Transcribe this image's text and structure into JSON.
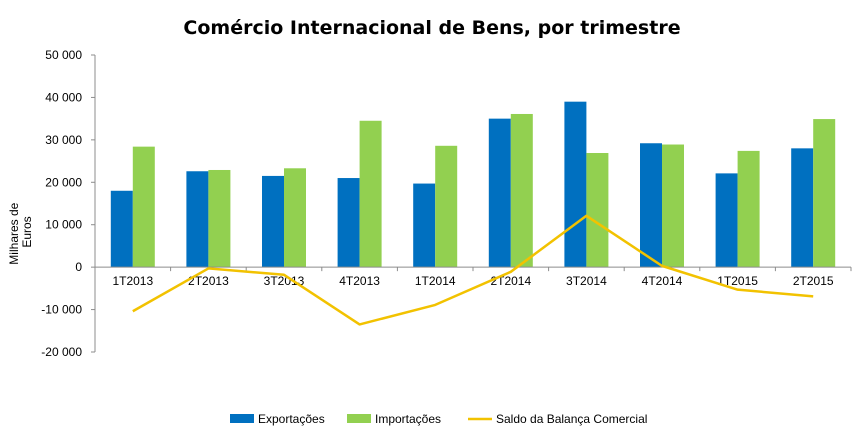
{
  "chart_data": {
    "type": "bar",
    "title": "Comércio Internacional de Bens, por trimestre",
    "ylabel_lines": [
      "Milhares de",
      "Euros"
    ],
    "xlabel": "",
    "categories": [
      "1T2013",
      "2T2013",
      "3T2013",
      "4T2013",
      "1T2014",
      "2T2014",
      "3T2014",
      "4T2014",
      "1T2015",
      "2T2015"
    ],
    "ylim": [
      -20000,
      50000
    ],
    "yticks": [
      -20000,
      -10000,
      0,
      10000,
      20000,
      30000,
      40000,
      50000
    ],
    "ytick_labels": [
      "-20 000",
      "-10 000",
      "0",
      "10 000",
      "20 000",
      "30 000",
      "40 000",
      "50 000"
    ],
    "grid": false,
    "legend_position": "bottom",
    "series": [
      {
        "name": "Exportações",
        "kind": "bar",
        "color": "#0070C0",
        "values": [
          18000,
          22600,
          21500,
          21000,
          19700,
          35000,
          39000,
          29200,
          22100,
          28000
        ]
      },
      {
        "name": "Importações",
        "kind": "bar",
        "color": "#92D050",
        "values": [
          28400,
          22900,
          23300,
          34500,
          28600,
          36100,
          26900,
          28900,
          27400,
          34900
        ]
      },
      {
        "name": "Saldo da Balança Comercial",
        "kind": "line",
        "color": "#F2C200",
        "values": [
          -10400,
          -300,
          -1800,
          -13500,
          -8900,
          -1100,
          12100,
          300,
          -5300,
          -6900
        ]
      }
    ]
  }
}
